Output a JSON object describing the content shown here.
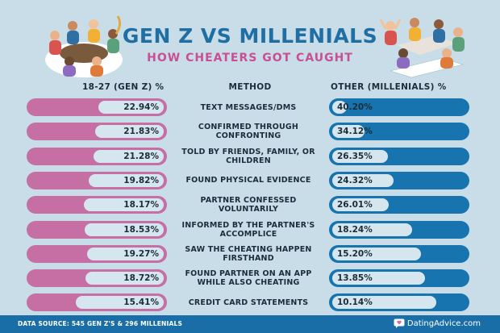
{
  "title": "GEN Z VS MILLENIALS",
  "subtitle": "HOW CHEATERS GOT CAUGHT",
  "headers": {
    "left": "18-27 (GEN Z) %",
    "middle": "METHOD",
    "right": "OTHER (MILLENIALS) %"
  },
  "colors": {
    "background": "#c9dde8",
    "gen_z": "#c56fa5",
    "millenials": "#1774ae",
    "title": "#1f6fa5",
    "subtitle": "#c94f94"
  },
  "chart_data": {
    "type": "bar",
    "categories": [
      "TEXT MESSAGES/DMS",
      "CONFIRMED THROUGH CONFRONTING",
      "TOLD BY FRIENDS, FAMILY, OR CHILDREN",
      "FOUND PHYSICAL EVIDENCE",
      "PARTNER CONFESSED VOLUNTARILY",
      "INFORMED BY THE PARTNER'S ACCOMPLICE",
      "SAW THE CHEATING HAPPEN FIRSTHAND",
      "FOUND PARTNER ON AN APP WHILE ALSO CHEATING",
      "CREDIT CARD STATEMENTS"
    ],
    "series": [
      {
        "name": "18-27 (GEN Z) %",
        "values": [
          22.94,
          21.83,
          21.28,
          19.82,
          18.17,
          18.53,
          19.27,
          18.72,
          15.41
        ],
        "labels": [
          "22.94%",
          "21.83%",
          "21.28%",
          "19.82%",
          "18.17%",
          "18.53%",
          "19.27%",
          "18.72%",
          "15.41%"
        ]
      },
      {
        "name": "OTHER (MILLENIALS) %",
        "values": [
          40.2,
          34.12,
          26.35,
          24.32,
          26.01,
          18.24,
          15.2,
          13.85,
          10.14
        ],
        "labels": [
          "40.20%",
          "34.12%",
          "26.35%",
          "24.32%",
          "26.01%",
          "18.24%",
          "15.20%",
          "13.85%",
          "10.14%"
        ]
      }
    ],
    "xlim": [
      0,
      45
    ]
  },
  "footer": {
    "source": "DATA SOURCE: 545 GEN Z'S & 296 MILLENIALS",
    "brand": "DatingAdvice.com"
  }
}
